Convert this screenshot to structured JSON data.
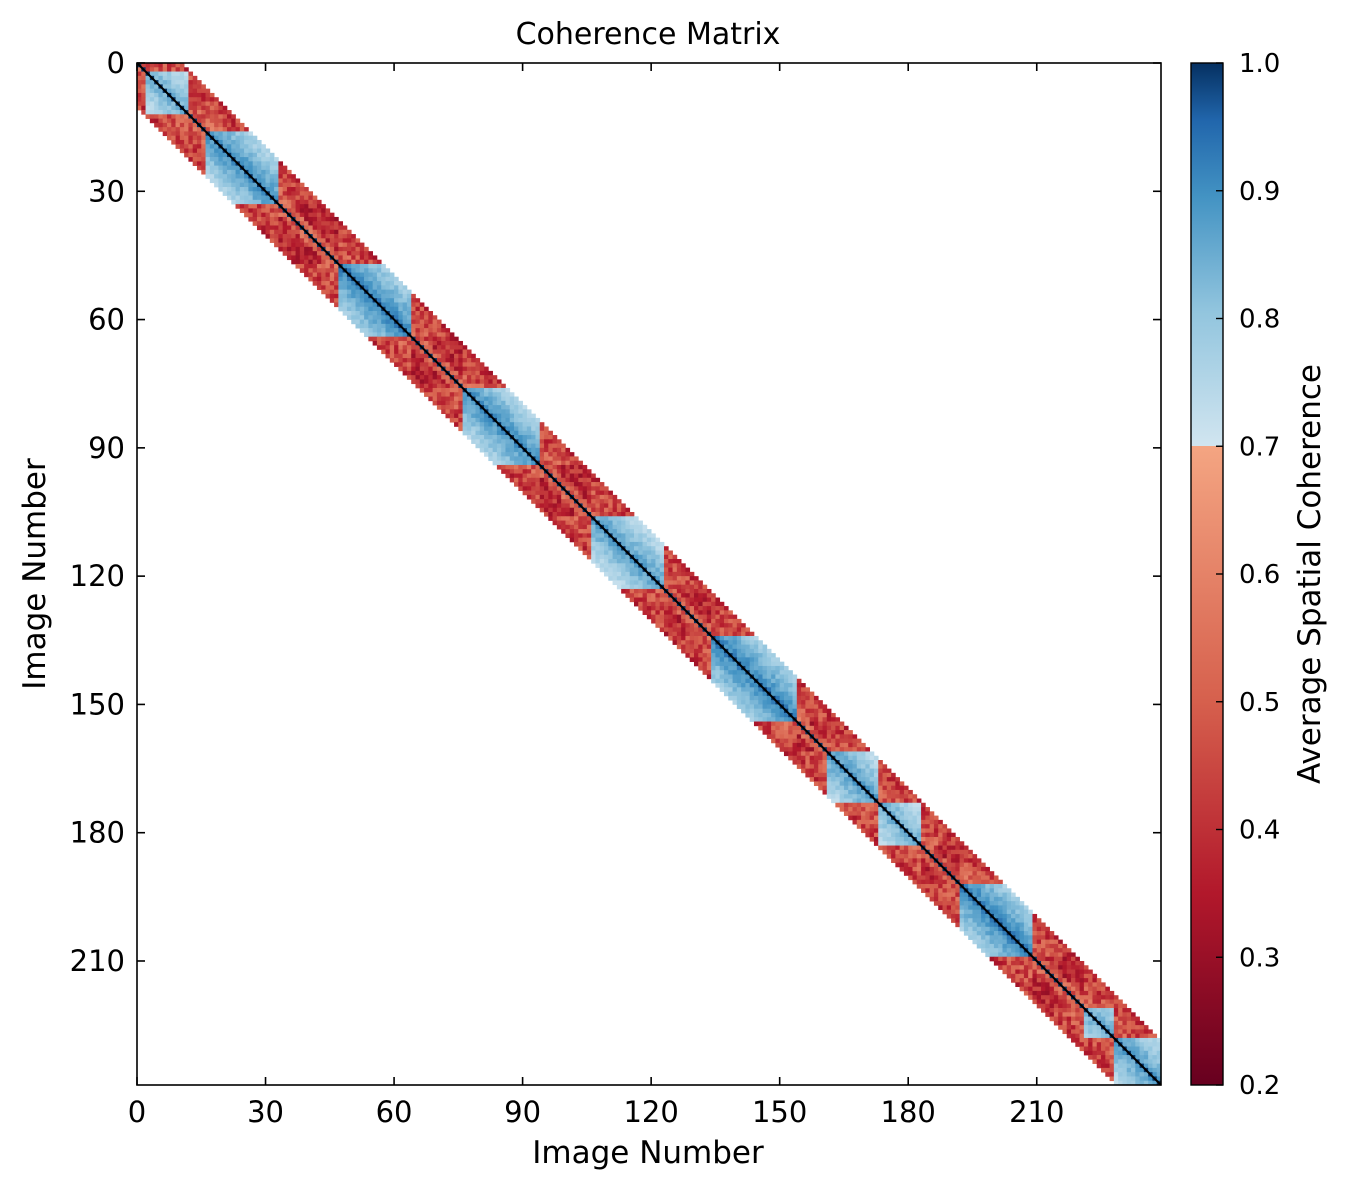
{
  "chart_data": {
    "type": "heatmap",
    "title": "Coherence Matrix",
    "xlabel": "Image Number",
    "ylabel": "Image Number",
    "n_images": 239,
    "x_ticks": [
      0,
      30,
      60,
      90,
      120,
      150,
      180,
      210
    ],
    "y_ticks": [
      0,
      30,
      60,
      90,
      120,
      150,
      180,
      210
    ],
    "y_axis_inverted": true,
    "bandwidth": 10,
    "off_band_value": null,
    "diagonal_value": 1.0,
    "high_coherence_blocks": [
      {
        "start": 2,
        "end": 11,
        "value": 0.85
      },
      {
        "start": 16,
        "end": 32,
        "value": 0.9
      },
      {
        "start": 47,
        "end": 63,
        "value": 0.92
      },
      {
        "start": 76,
        "end": 93,
        "value": 0.9
      },
      {
        "start": 106,
        "end": 122,
        "value": 0.88
      },
      {
        "start": 134,
        "end": 153,
        "value": 0.92
      },
      {
        "start": 161,
        "end": 172,
        "value": 0.88
      },
      {
        "start": 172,
        "end": 182,
        "value": 0.85
      },
      {
        "start": 192,
        "end": 208,
        "value": 0.92
      },
      {
        "start": 221,
        "end": 227,
        "value": 0.85
      },
      {
        "start": 227,
        "end": 238,
        "value": 0.88
      }
    ],
    "background_band_value": 0.38,
    "colorbar": {
      "label": "Average Spatial Coherence",
      "vmin": 0.2,
      "vmax": 1.0,
      "ticks": [
        "0.2",
        "0.3",
        "0.4",
        "0.5",
        "0.6",
        "0.7",
        "0.8",
        "0.9",
        "1.0"
      ],
      "colormap": "RdBu",
      "split_at": 0.7
    }
  }
}
